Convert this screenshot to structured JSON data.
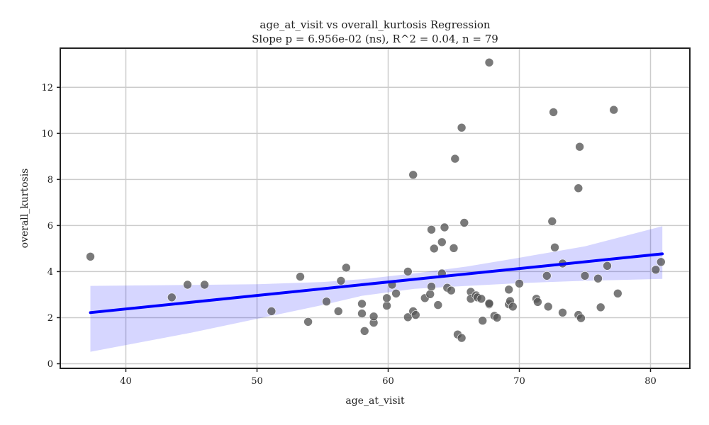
{
  "chart_data": {
    "type": "scatter",
    "title": "age_at_visit vs overall_kurtosis Regression",
    "subtitle": "Slope p = 6.956e-02 (ns), R^2 = 0.04, n = 79",
    "xlabel": "age_at_visit",
    "ylabel": "overall_kurtosis",
    "xlim": [
      35,
      83
    ],
    "ylim": [
      -0.2,
      13.7
    ],
    "x_ticks": [
      40,
      50,
      60,
      70,
      80
    ],
    "y_ticks": [
      0,
      2,
      4,
      6,
      8,
      10,
      12
    ],
    "grid": true,
    "colors": {
      "points": "#555555",
      "regression": "#0000ff",
      "band": "#0000ff"
    },
    "regression": {
      "x": [
        37.3,
        80.9
      ],
      "y": [
        2.22,
        4.77
      ]
    },
    "confidence_band": {
      "x": [
        37.3,
        45,
        50,
        55,
        58,
        62,
        66,
        70,
        75,
        80.9
      ],
      "upper": [
        3.38,
        3.42,
        3.45,
        3.55,
        3.67,
        3.92,
        4.22,
        4.6,
        5.1,
        5.97
      ],
      "lower": [
        0.52,
        1.35,
        1.95,
        2.55,
        2.95,
        3.25,
        3.38,
        3.5,
        3.6,
        3.68
      ]
    },
    "points": [
      {
        "x": 37.3,
        "y": 4.65
      },
      {
        "x": 43.5,
        "y": 2.88
      },
      {
        "x": 44.7,
        "y": 3.43
      },
      {
        "x": 46.0,
        "y": 3.43
      },
      {
        "x": 51.1,
        "y": 2.28
      },
      {
        "x": 53.3,
        "y": 3.78
      },
      {
        "x": 53.9,
        "y": 1.82
      },
      {
        "x": 55.3,
        "y": 2.7
      },
      {
        "x": 56.2,
        "y": 2.28
      },
      {
        "x": 56.4,
        "y": 3.6
      },
      {
        "x": 56.8,
        "y": 4.17
      },
      {
        "x": 58.0,
        "y": 2.6
      },
      {
        "x": 58.0,
        "y": 2.18
      },
      {
        "x": 58.2,
        "y": 1.42
      },
      {
        "x": 58.9,
        "y": 1.78
      },
      {
        "x": 58.9,
        "y": 2.05
      },
      {
        "x": 59.9,
        "y": 2.52
      },
      {
        "x": 59.9,
        "y": 2.85
      },
      {
        "x": 60.3,
        "y": 3.43
      },
      {
        "x": 60.6,
        "y": 3.05
      },
      {
        "x": 61.5,
        "y": 4.0
      },
      {
        "x": 61.5,
        "y": 2.02
      },
      {
        "x": 61.9,
        "y": 2.28
      },
      {
        "x": 62.1,
        "y": 2.12
      },
      {
        "x": 61.9,
        "y": 8.2
      },
      {
        "x": 62.8,
        "y": 2.85
      },
      {
        "x": 63.2,
        "y": 3.02
      },
      {
        "x": 63.3,
        "y": 3.35
      },
      {
        "x": 63.3,
        "y": 5.82
      },
      {
        "x": 63.5,
        "y": 5.0
      },
      {
        "x": 63.8,
        "y": 2.55
      },
      {
        "x": 64.1,
        "y": 5.28
      },
      {
        "x": 64.1,
        "y": 3.92
      },
      {
        "x": 64.3,
        "y": 5.92
      },
      {
        "x": 64.5,
        "y": 3.3
      },
      {
        "x": 64.8,
        "y": 3.18
      },
      {
        "x": 65.0,
        "y": 5.02
      },
      {
        "x": 65.1,
        "y": 8.9
      },
      {
        "x": 65.3,
        "y": 1.27
      },
      {
        "x": 65.6,
        "y": 1.12
      },
      {
        "x": 65.6,
        "y": 10.25
      },
      {
        "x": 65.8,
        "y": 6.12
      },
      {
        "x": 66.3,
        "y": 3.12
      },
      {
        "x": 66.3,
        "y": 2.82
      },
      {
        "x": 66.7,
        "y": 2.97
      },
      {
        "x": 66.8,
        "y": 2.88
      },
      {
        "x": 67.1,
        "y": 2.82
      },
      {
        "x": 67.2,
        "y": 1.87
      },
      {
        "x": 67.7,
        "y": 2.58
      },
      {
        "x": 67.7,
        "y": 2.62
      },
      {
        "x": 67.7,
        "y": 13.08
      },
      {
        "x": 68.1,
        "y": 2.08
      },
      {
        "x": 68.3,
        "y": 2.0
      },
      {
        "x": 69.2,
        "y": 2.58
      },
      {
        "x": 69.2,
        "y": 3.22
      },
      {
        "x": 69.3,
        "y": 2.72
      },
      {
        "x": 69.5,
        "y": 2.48
      },
      {
        "x": 70.0,
        "y": 3.48
      },
      {
        "x": 71.3,
        "y": 2.82
      },
      {
        "x": 71.4,
        "y": 2.68
      },
      {
        "x": 72.1,
        "y": 3.82
      },
      {
        "x": 72.2,
        "y": 2.48
      },
      {
        "x": 72.5,
        "y": 6.18
      },
      {
        "x": 72.6,
        "y": 10.92
      },
      {
        "x": 72.7,
        "y": 5.05
      },
      {
        "x": 73.3,
        "y": 4.35
      },
      {
        "x": 73.3,
        "y": 2.22
      },
      {
        "x": 74.5,
        "y": 7.62
      },
      {
        "x": 74.6,
        "y": 9.42
      },
      {
        "x": 74.5,
        "y": 2.12
      },
      {
        "x": 74.7,
        "y": 1.98
      },
      {
        "x": 75.0,
        "y": 3.82
      },
      {
        "x": 76.0,
        "y": 3.7
      },
      {
        "x": 76.2,
        "y": 2.45
      },
      {
        "x": 76.7,
        "y": 4.25
      },
      {
        "x": 77.2,
        "y": 11.02
      },
      {
        "x": 77.5,
        "y": 3.05
      },
      {
        "x": 80.4,
        "y": 4.08
      },
      {
        "x": 80.8,
        "y": 4.42
      }
    ]
  }
}
